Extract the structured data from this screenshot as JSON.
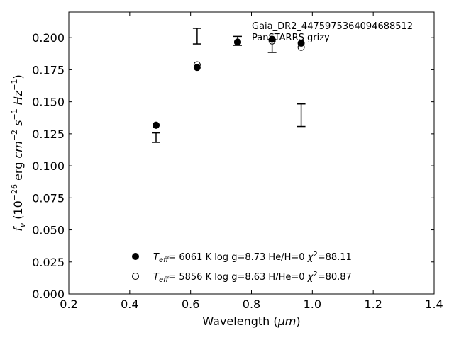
{
  "chart_data": {
    "type": "scatter",
    "xlabel_text": "Wavelength (",
    "xlabel_unit": "μm",
    "xlabel_close": ")",
    "ylabel": {
      "f": "f",
      "nu": "ν",
      "open": " (10",
      "exp_neg26": "−26",
      "erg": " erg ",
      "cm": "cm",
      "exp_neg2": "−2",
      "s": "s",
      "exp_neg1": "−1",
      "Hz": "Hz",
      "exp_neg1b": "−1",
      "close": ")"
    },
    "xlim": [
      0.2,
      1.4
    ],
    "ylim": [
      0.0,
      0.22
    ],
    "xticks": [
      0.2,
      0.4,
      0.6,
      0.8,
      1.0,
      1.2,
      1.4
    ],
    "xtick_labels": [
      "0.2",
      "0.4",
      "0.6",
      "0.8",
      "1.0",
      "1.2",
      "1.4"
    ],
    "yticks": [
      0.0,
      0.025,
      0.05,
      0.075,
      0.1,
      0.125,
      0.15,
      0.175,
      0.2
    ],
    "ytick_labels": [
      "0.000",
      "0.025",
      "0.050",
      "0.075",
      "0.100",
      "0.125",
      "0.150",
      "0.175",
      "0.200"
    ],
    "annotation_lines": [
      "Gaia_DR2_4475975364094688512",
      "PanSTARRS grizy"
    ],
    "observed": {
      "x": [
        0.4866,
        0.6215,
        0.7545,
        0.8679,
        0.9633
      ],
      "y": [
        0.122,
        0.2012,
        0.1975,
        0.1935,
        0.1395
      ],
      "err": [
        0.0037,
        0.0061,
        0.0035,
        0.005,
        0.0088
      ]
    },
    "series": [
      {
        "marker": "filled",
        "x": [
          0.4866,
          0.6215,
          0.7545,
          0.8679,
          0.9633
        ],
        "y": [
          0.1317,
          0.1768,
          0.1965,
          0.1987,
          0.1957
        ]
      },
      {
        "marker": "open",
        "x": [
          0.4866,
          0.6215,
          0.7545,
          0.8679,
          0.9633
        ],
        "y": [
          0.1317,
          0.1788,
          0.1965,
          0.1975,
          0.1925
        ]
      }
    ],
    "legend": [
      {
        "marker": "filled",
        "teff_sym": "T",
        "teff_sub": "eff",
        "teff_val": "=  6061 K",
        "logg": "  log g=8.73",
        "ratio": "  He/H=0",
        "chi": "  χ",
        "chi_sup": "2",
        "chi_val": "=88.11"
      },
      {
        "marker": "open",
        "teff_sym": "T",
        "teff_sub": "eff",
        "teff_val": "=  5856 K",
        "logg": "  log g=8.63",
        "ratio": "  H/He=0",
        "chi": "  χ",
        "chi_sup": "2",
        "chi_val": "=80.87"
      }
    ]
  }
}
